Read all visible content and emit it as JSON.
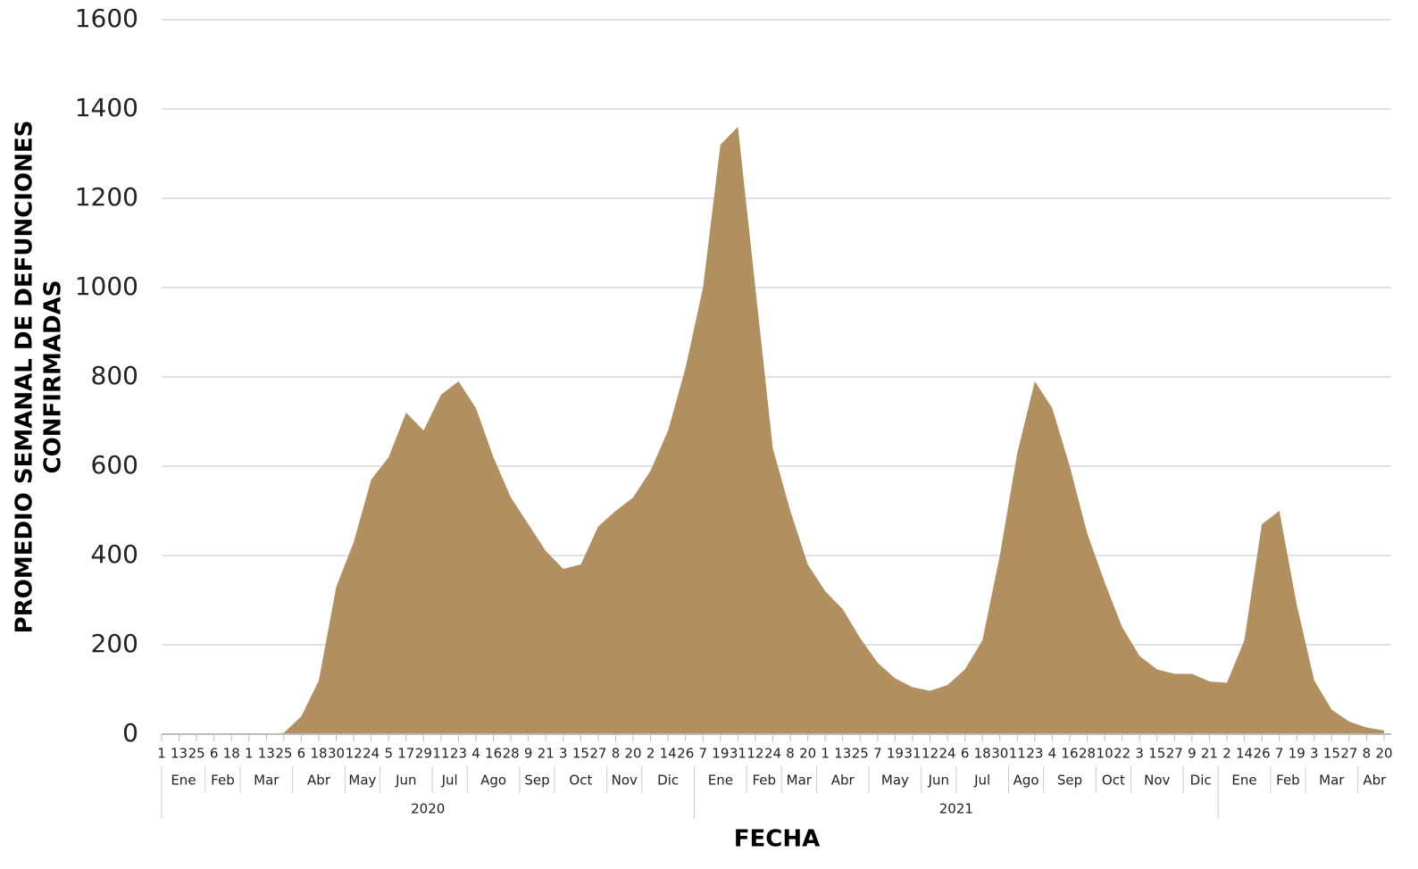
{
  "chart_data": {
    "type": "area",
    "color": "#b28f5e",
    "grid": true,
    "y_label": [
      "PROMEDIO  SEMANAL DE DEFUNCIONES",
      "CONFIRMADAS"
    ],
    "x_label": "FECHA",
    "ylim": [
      0,
      1600
    ],
    "yticks": [
      0,
      200,
      400,
      600,
      800,
      1000,
      1200,
      1400,
      1600
    ],
    "years": [
      {
        "label": "2020",
        "months": [
          {
            "label": "Ene",
            "days": [
              "1",
              "13",
              "25"
            ],
            "values": [
              0,
              0,
              0
            ]
          },
          {
            "label": "Feb",
            "days": [
              "6",
              "18"
            ],
            "values": [
              0,
              0
            ]
          },
          {
            "label": "Mar",
            "days": [
              "1",
              "13",
              "25"
            ],
            "values": [
              0,
              0,
              3
            ]
          },
          {
            "label": "Abr",
            "days": [
              "6",
              "18",
              "30"
            ],
            "values": [
              40,
              120,
              330
            ]
          },
          {
            "label": "May",
            "days": [
              "12",
              "24"
            ],
            "values": [
              430,
              570
            ]
          },
          {
            "label": "Jun",
            "days": [
              "5",
              "17",
              "29"
            ],
            "values": [
              620,
              720,
              680
            ]
          },
          {
            "label": "Jul",
            "days": [
              "11",
              "23"
            ],
            "values": [
              760,
              790
            ]
          },
          {
            "label": "Ago",
            "days": [
              "4",
              "16",
              "28"
            ],
            "values": [
              730,
              620,
              530
            ]
          },
          {
            "label": "Sep",
            "days": [
              "9",
              "21"
            ],
            "values": [
              470,
              410
            ]
          },
          {
            "label": "Oct",
            "days": [
              "3",
              "15",
              "27"
            ],
            "values": [
              370,
              380,
              465
            ]
          },
          {
            "label": "Nov",
            "days": [
              "8",
              "20"
            ],
            "values": [
              500,
              530
            ]
          },
          {
            "label": "Dic",
            "days": [
              "2",
              "14",
              "26"
            ],
            "values": [
              590,
              680,
              820
            ]
          }
        ]
      },
      {
        "label": "2021",
        "months": [
          {
            "label": "Ene",
            "days": [
              "7",
              "19",
              "31"
            ],
            "values": [
              1000,
              1320,
              1360
            ]
          },
          {
            "label": "Feb",
            "days": [
              "12",
              "24"
            ],
            "values": [
              1000,
              640
            ]
          },
          {
            "label": "Mar",
            "days": [
              "8",
              "20"
            ],
            "values": [
              500,
              380
            ]
          },
          {
            "label": "Abr",
            "days": [
              "1",
              "13",
              "25"
            ],
            "values": [
              320,
              280,
              215
            ]
          },
          {
            "label": "May",
            "days": [
              "7",
              "19",
              "31"
            ],
            "values": [
              160,
              125,
              105
            ]
          },
          {
            "label": "Jun",
            "days": [
              "12",
              "24"
            ],
            "values": [
              97,
              110
            ]
          },
          {
            "label": "Jul",
            "days": [
              "6",
              "18",
              "30"
            ],
            "values": [
              145,
              210,
              400
            ]
          },
          {
            "label": "Ago",
            "days": [
              "11",
              "23"
            ],
            "values": [
              630,
              790
            ]
          },
          {
            "label": "Sep",
            "days": [
              "4",
              "16",
              "28"
            ],
            "values": [
              730,
              600,
              450
            ]
          },
          {
            "label": "Oct",
            "days": [
              "10",
              "22"
            ],
            "values": [
              340,
              240
            ]
          },
          {
            "label": "Nov",
            "days": [
              "3",
              "15",
              "27"
            ],
            "values": [
              175,
              145,
              135
            ]
          },
          {
            "label": "Dic",
            "days": [
              "9",
              "21"
            ],
            "values": [
              135,
              118
            ]
          }
        ]
      },
      {
        "label": null,
        "months": [
          {
            "label": "Ene",
            "days": [
              "2",
              "14",
              "26"
            ],
            "values": [
              115,
              210,
              470
            ]
          },
          {
            "label": "Feb",
            "days": [
              "7",
              "19"
            ],
            "values": [
              500,
              290
            ]
          },
          {
            "label": "Mar",
            "days": [
              "3",
              "15",
              "27"
            ],
            "values": [
              120,
              55,
              28
            ]
          },
          {
            "label": "Abr",
            "days": [
              "8",
              "20"
            ],
            "values": [
              15,
              8
            ]
          }
        ]
      }
    ]
  }
}
